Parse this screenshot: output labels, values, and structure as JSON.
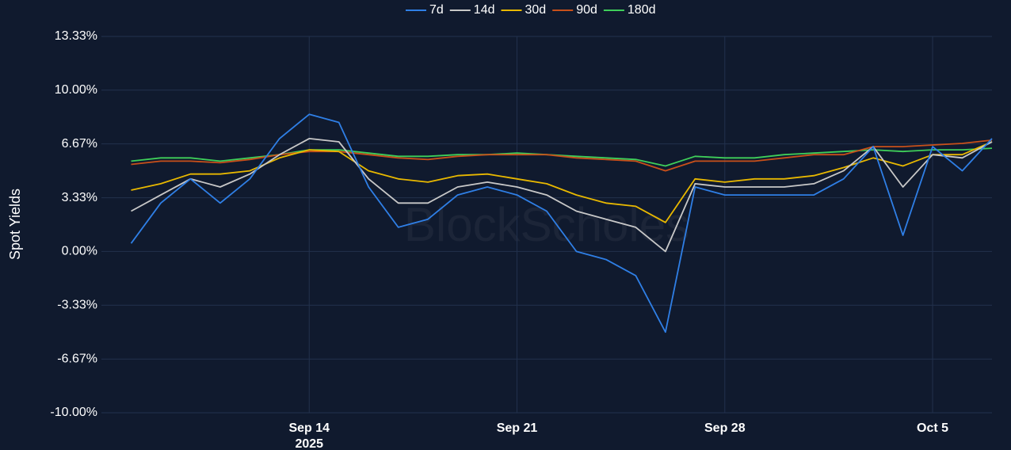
{
  "chart_data": {
    "type": "line",
    "y_label": "Spot Yields",
    "watermark": "BlockScholes",
    "x": [
      "2025-09-08",
      "2025-09-09",
      "2025-09-10",
      "2025-09-11",
      "2025-09-12",
      "2025-09-13",
      "2025-09-14",
      "2025-09-15",
      "2025-09-16",
      "2025-09-17",
      "2025-09-18",
      "2025-09-19",
      "2025-09-20",
      "2025-09-21",
      "2025-09-22",
      "2025-09-23",
      "2025-09-24",
      "2025-09-25",
      "2025-09-26",
      "2025-09-27",
      "2025-09-28",
      "2025-09-29",
      "2025-09-30",
      "2025-10-01",
      "2025-10-02",
      "2025-10-03",
      "2025-10-04",
      "2025-10-05",
      "2025-10-06",
      "2025-10-07"
    ],
    "series": [
      {
        "name": "7d",
        "color": "#2f7fe6",
        "values": [
          0.5,
          3,
          4.5,
          3,
          4.5,
          7,
          8.5,
          8,
          4,
          1.5,
          2,
          3.5,
          4,
          3.5,
          2.5,
          0,
          -0.5,
          -1.5,
          -5,
          4,
          3.5,
          3.5,
          3.5,
          3.5,
          4.5,
          6.5,
          1,
          6.5,
          5,
          7
        ]
      },
      {
        "name": "14d",
        "color": "#c8c8c8",
        "values": [
          2.5,
          3.5,
          4.5,
          4,
          4.8,
          6,
          7,
          6.8,
          4.5,
          3,
          3,
          4,
          4.3,
          4,
          3.5,
          2.5,
          2,
          1.5,
          0,
          4.2,
          4,
          4,
          4,
          4.2,
          5,
          6.5,
          4,
          6,
          5.8,
          6.8
        ]
      },
      {
        "name": "30d",
        "color": "#e8b800",
        "values": [
          3.8,
          4.2,
          4.8,
          4.8,
          5,
          5.8,
          6.3,
          6.2,
          5,
          4.5,
          4.3,
          4.7,
          4.8,
          4.5,
          4.2,
          3.5,
          3,
          2.8,
          1.8,
          4.5,
          4.3,
          4.5,
          4.5,
          4.7,
          5.2,
          5.8,
          5.3,
          6,
          6,
          6.8
        ]
      },
      {
        "name": "90d",
        "color": "#c8501a",
        "values": [
          5.4,
          5.6,
          5.6,
          5.5,
          5.7,
          6,
          6.2,
          6.2,
          6,
          5.8,
          5.7,
          5.9,
          6,
          6,
          6,
          5.8,
          5.7,
          5.6,
          5,
          5.6,
          5.6,
          5.6,
          5.8,
          6,
          6,
          6.5,
          6.5,
          6.6,
          6.7,
          6.9
        ]
      },
      {
        "name": "180d",
        "color": "#3fcf5a",
        "values": [
          5.6,
          5.8,
          5.8,
          5.6,
          5.8,
          6,
          6.3,
          6.3,
          6.1,
          5.9,
          5.9,
          6,
          6,
          6.1,
          6,
          5.9,
          5.8,
          5.7,
          5.3,
          5.9,
          5.8,
          5.8,
          6,
          6.1,
          6.2,
          6.3,
          6.2,
          6.3,
          6.3,
          6.4
        ]
      }
    ],
    "xlim": [
      "2025-09-07",
      "2025-10-07"
    ],
    "xticks": [
      {
        "value": "2025-09-14",
        "label": "Sep 14\n2025"
      },
      {
        "value": "2025-09-21",
        "label": "Sep 21"
      },
      {
        "value": "2025-09-28",
        "label": "Sep 28"
      },
      {
        "value": "2025-10-05",
        "label": "Oct 5"
      }
    ],
    "ylim": [
      -10,
      13.33
    ],
    "yticks": [
      {
        "value": -10,
        "label": "-10.00%"
      },
      {
        "value": -6.67,
        "label": "-6.67%"
      },
      {
        "value": -3.33,
        "label": "-3.33%"
      },
      {
        "value": 0,
        "label": "0.00%"
      },
      {
        "value": 3.33,
        "label": "3.33%"
      },
      {
        "value": 6.67,
        "label": "6.67%"
      },
      {
        "value": 10,
        "label": "10.00%"
      },
      {
        "value": 13.33,
        "label": "13.33%"
      }
    ],
    "grid": true,
    "legend": "top"
  }
}
